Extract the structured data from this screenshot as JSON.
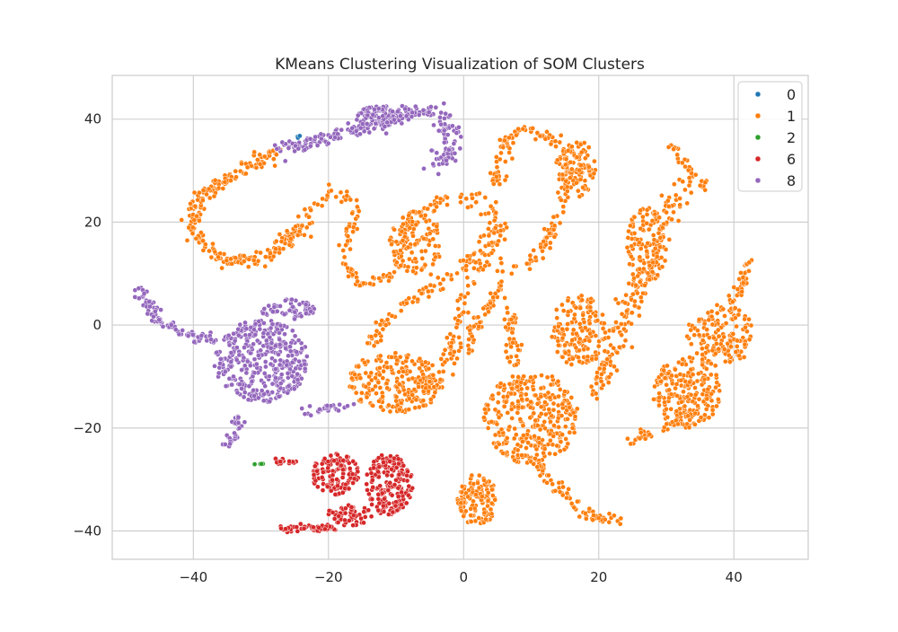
{
  "chart_data": {
    "type": "scatter",
    "title": "KMeans Clustering Visualization of SOM Clusters",
    "xlabel": "",
    "ylabel": "",
    "xlim": [
      -52,
      51
    ],
    "ylim": [
      -45.5,
      48.5
    ],
    "xticks": [
      -40,
      -20,
      0,
      20,
      40
    ],
    "yticks": [
      -40,
      -20,
      0,
      20,
      40
    ],
    "xtick_labels": [
      "−40",
      "−20",
      "0",
      "20",
      "40"
    ],
    "ytick_labels": [
      "−40",
      "−20",
      "0",
      "20",
      "40"
    ],
    "grid": true,
    "legend_position": "top-right",
    "legend": [
      "0",
      "1",
      "2",
      "6",
      "8"
    ],
    "colors": {
      "0": "#1f77b4",
      "1": "#ff7f0e",
      "2": "#2ca02c",
      "6": "#d62728",
      "8": "#9467bd",
      "grid": "#cccccc",
      "frame": "#cccccc",
      "marker_edge": "#ffffff"
    },
    "series": [
      {
        "name": "1",
        "regions": [
          {
            "kind": "path",
            "pts": [
              [
                -27,
                34
              ],
              [
                -30,
                32
              ],
              [
                -34,
                29
              ],
              [
                -38,
                26
              ],
              [
                -40,
                22
              ],
              [
                -40,
                18
              ],
              [
                -38,
                15
              ],
              [
                -35,
                12.5
              ],
              [
                -31,
                12.5
              ],
              [
                -28,
                14
              ],
              [
                -26,
                17
              ],
              [
                -24,
                18
              ]
            ],
            "spread": 1.0,
            "n": 240
          },
          {
            "kind": "path",
            "pts": [
              [
                -26,
                16
              ],
              [
                -24,
                20
              ],
              [
                -22,
                24
              ],
              [
                -19,
                26
              ],
              [
                -17,
                25
              ],
              [
                -16,
                22
              ],
              [
                -17,
                18
              ],
              [
                -18,
                14
              ],
              [
                -17,
                10
              ],
              [
                -14,
                8
              ],
              [
                -11,
                9
              ],
              [
                -10,
                12
              ],
              [
                -9,
                16
              ],
              [
                -8,
                20
              ],
              [
                -5,
                23
              ],
              [
                -1,
                24.5
              ],
              [
                2,
                24.5
              ],
              [
                4,
                23
              ],
              [
                5,
                20
              ],
              [
                4,
                17
              ],
              [
                2,
                14
              ],
              [
                0,
                11
              ],
              [
                -3,
                9
              ],
              [
                -6,
                6
              ],
              [
                -9,
                3
              ],
              [
                -12,
                0
              ],
              [
                -14,
                -4
              ]
            ],
            "spread": 1.1,
            "n": 300
          },
          {
            "kind": "blob",
            "cx": -7,
            "cy": 16,
            "rx": 4,
            "ry": 6,
            "n": 90
          },
          {
            "kind": "blob",
            "cx": -10,
            "cy": -11,
            "rx": 7,
            "ry": 6,
            "n": 220
          },
          {
            "kind": "path",
            "pts": [
              [
                -8,
                -13
              ],
              [
                -4,
                -10
              ],
              [
                -1,
                -6
              ],
              [
                1,
                -2
              ],
              [
                3,
                2
              ],
              [
                5,
                6
              ],
              [
                7,
                12
              ]
            ],
            "spread": 1.0,
            "n": 90
          },
          {
            "kind": "path",
            "pts": [
              [
                -3,
                -7
              ],
              [
                -1,
                0
              ],
              [
                0,
                5
              ],
              [
                2,
                10
              ],
              [
                4,
                15
              ],
              [
                6,
                19
              ]
            ],
            "spread": 0.9,
            "n": 70
          },
          {
            "kind": "path",
            "pts": [
              [
                10,
                12
              ],
              [
                12,
                16
              ],
              [
                14,
                20
              ],
              [
                15,
                25
              ],
              [
                15,
                30
              ],
              [
                14,
                34
              ],
              [
                12,
                37
              ],
              [
                9,
                38
              ],
              [
                7,
                37
              ],
              [
                6,
                34
              ],
              [
                5,
                30
              ],
              [
                6,
                27
              ]
            ],
            "spread": 1.0,
            "n": 150
          },
          {
            "kind": "blob",
            "cx": 17,
            "cy": 30,
            "rx": 2.5,
            "ry": 6,
            "n": 90
          },
          {
            "kind": "path",
            "pts": [
              [
                7,
                3
              ],
              [
                7,
                -3
              ],
              [
                8,
                -8
              ],
              [
                8,
                -14
              ]
            ],
            "spread": 0.9,
            "n": 60
          },
          {
            "kind": "blob",
            "cx": 10,
            "cy": -18,
            "rx": 7,
            "ry": 9,
            "n": 330
          },
          {
            "kind": "path",
            "pts": [
              [
                10,
                -25
              ],
              [
                13,
                -30
              ],
              [
                16,
                -34
              ],
              [
                18,
                -37
              ],
              [
                21,
                -38
              ],
              [
                24,
                -38
              ]
            ],
            "spread": 1.0,
            "n": 70
          },
          {
            "kind": "blob",
            "cx": 2,
            "cy": -34,
            "rx": 3,
            "ry": 5,
            "n": 130
          },
          {
            "kind": "blob",
            "cx": 17,
            "cy": -1,
            "rx": 4,
            "ry": 7,
            "n": 150
          },
          {
            "kind": "path",
            "pts": [
              [
                20,
                -13
              ],
              [
                22,
                -5
              ],
              [
                24,
                2
              ],
              [
                26,
                8
              ],
              [
                28,
                13
              ],
              [
                29,
                18
              ],
              [
                30,
                22
              ],
              [
                32,
                25
              ],
              [
                34,
                28
              ]
            ],
            "spread": 1.6,
            "n": 180
          },
          {
            "kind": "blob",
            "cx": 27,
            "cy": 15,
            "rx": 3,
            "ry": 8,
            "n": 110
          },
          {
            "kind": "path",
            "pts": [
              [
                31,
                35
              ],
              [
                33,
                31
              ],
              [
                35,
                28
              ],
              [
                36,
                26
              ]
            ],
            "spread": 0.6,
            "n": 30
          },
          {
            "kind": "blob",
            "cx": 33,
            "cy": -13,
            "rx": 5,
            "ry": 7,
            "n": 200
          },
          {
            "kind": "blob",
            "cx": 38,
            "cy": -2,
            "rx": 5,
            "ry": 6,
            "n": 150
          },
          {
            "kind": "path",
            "pts": [
              [
                24,
                -22
              ],
              [
                28,
                -21
              ],
              [
                32,
                -19
              ],
              [
                35,
                -16
              ]
            ],
            "spread": 0.8,
            "n": 40
          },
          {
            "kind": "path",
            "pts": [
              [
                39,
                3
              ],
              [
                41,
                7
              ],
              [
                42,
                12
              ],
              [
                42,
                14
              ]
            ],
            "spread": 0.8,
            "n": 40
          }
        ]
      },
      {
        "name": "8",
        "regions": [
          {
            "kind": "path",
            "pts": [
              [
                -27,
                34
              ],
              [
                -23,
                35.5
              ],
              [
                -19,
                37
              ],
              [
                -15,
                38
              ],
              [
                -11,
                39.5
              ],
              [
                -8,
                41.5
              ],
              [
                -6,
                42
              ],
              [
                -3,
                40
              ],
              [
                -1.5,
                37.5
              ],
              [
                -2,
                34
              ],
              [
                -4,
                30.5
              ]
            ],
            "spread": 1.3,
            "n": 250
          },
          {
            "kind": "blob",
            "cx": -12,
            "cy": 40.5,
            "rx": 4,
            "ry": 2,
            "n": 80
          },
          {
            "kind": "path",
            "pts": [
              [
                -48,
                7
              ],
              [
                -45,
                1
              ],
              [
                -41,
                -2
              ],
              [
                -37,
                -3
              ]
            ],
            "spread": 1.0,
            "n": 90
          },
          {
            "kind": "blob",
            "cx": -30,
            "cy": -7,
            "rx": 7,
            "ry": 8,
            "n": 380
          },
          {
            "kind": "blob",
            "cx": -26,
            "cy": 3,
            "rx": 4,
            "ry": 2,
            "n": 60
          },
          {
            "kind": "path",
            "pts": [
              [
                -33,
                -17
              ],
              [
                -34,
                -20
              ],
              [
                -35,
                -24
              ]
            ],
            "spread": 0.8,
            "n": 30
          },
          {
            "kind": "path",
            "pts": [
              [
                -24,
                -17
              ],
              [
                -19,
                -16
              ],
              [
                -16,
                -15
              ]
            ],
            "spread": 0.7,
            "n": 25
          }
        ]
      },
      {
        "name": "6",
        "regions": [
          {
            "kind": "blob",
            "cx": -11,
            "cy": -31,
            "rx": 3.5,
            "ry": 6,
            "n": 200
          },
          {
            "kind": "blob",
            "cx": -19,
            "cy": -29,
            "rx": 3.5,
            "ry": 4,
            "n": 120
          },
          {
            "kind": "blob",
            "cx": -17,
            "cy": -37,
            "rx": 3.5,
            "ry": 2,
            "n": 60
          },
          {
            "kind": "path",
            "pts": [
              [
                -27,
                -39.5
              ],
              [
                -23,
                -39.5
              ],
              [
                -19,
                -39.5
              ]
            ],
            "spread": 0.6,
            "n": 50
          },
          {
            "kind": "path",
            "pts": [
              [
                -28,
                -26.5
              ],
              [
                -25,
                -26.5
              ]
            ],
            "spread": 0.4,
            "n": 15
          }
        ]
      },
      {
        "name": "2",
        "regions": [
          {
            "kind": "path",
            "pts": [
              [
                -31,
                -27
              ],
              [
                -29.5,
                -27
              ]
            ],
            "spread": 0.1,
            "n": 5
          }
        ]
      },
      {
        "name": "0",
        "regions": [
          {
            "kind": "path",
            "pts": [
              [
                -25.5,
                35.5
              ],
              [
                -24,
                37
              ]
            ],
            "spread": 0.2,
            "n": 3
          }
        ]
      }
    ]
  }
}
